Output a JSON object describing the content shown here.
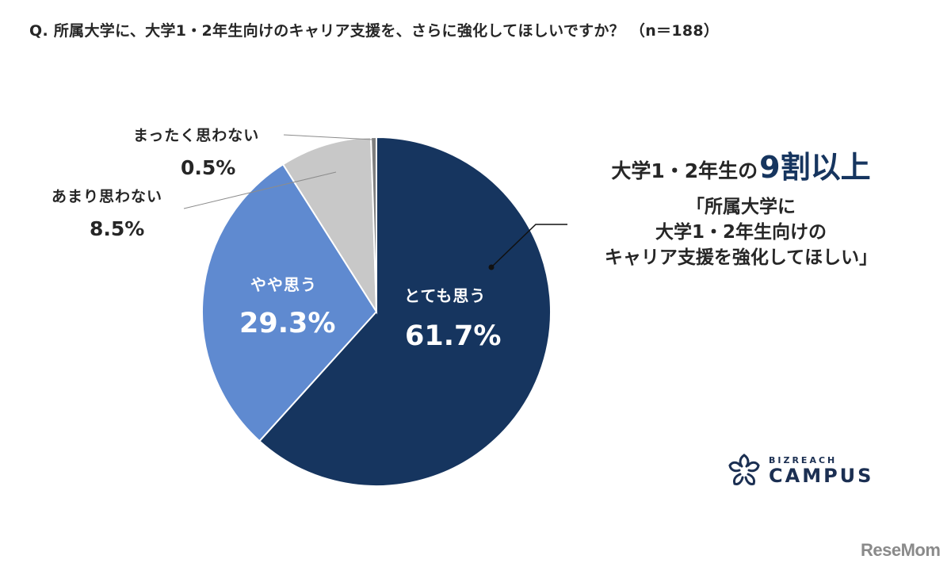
{
  "title": "Q. 所属大学に、大学1・2年生向けのキャリア支援を、さらに強化してほしいですか？ （n＝188）",
  "chart_data": {
    "type": "pie",
    "title": "Q. 所属大学に、大学1・2年生向けのキャリア支援を、さらに強化してほしいですか？ （n＝188）",
    "n": 188,
    "categories": [
      "とても思う",
      "やや思う",
      "あまり思わない",
      "まったく思わない"
    ],
    "values": [
      61.7,
      29.3,
      8.5,
      0.5
    ],
    "unit": "%",
    "colors": [
      "#16355f",
      "#5f8ad0",
      "#c8c8c8",
      "#7f7f7f"
    ],
    "start_angle": "12 o'clock, clockwise",
    "annotations": [
      "大学1・2年生の9割以上",
      "「所属大学に大学1・2年生向けのキャリア支援を強化してほしい」"
    ]
  },
  "labels": {
    "very": {
      "category": "とても思う",
      "value": "61.7%"
    },
    "somewhat": {
      "category": "やや思う",
      "value": "29.3%"
    },
    "not_much": {
      "category": "あまり思わない",
      "value": "8.5%"
    },
    "not_at_all": {
      "category": "まったく思わない",
      "value": "0.5%"
    }
  },
  "callout": {
    "headline_prefix": "大学1・2年生の",
    "headline_emphasis": "9割以上",
    "quote_lines": [
      "「所属大学に",
      "大学1・2年生向けの",
      "キャリア支援を強化してほしい」"
    ]
  },
  "logo": {
    "sub": "BIZREACH",
    "main": "CAMPUS"
  },
  "watermark": "ReseMom"
}
